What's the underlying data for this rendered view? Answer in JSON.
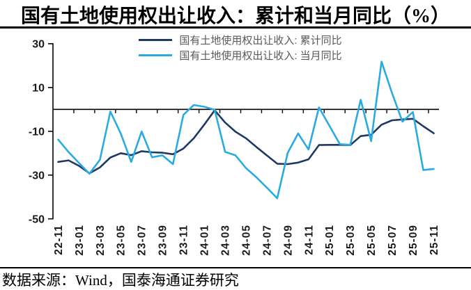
{
  "title": "国有土地使用权出让收入：累计和当月同比（%）",
  "source_note": "数据来源：Wind，国泰海通证券研究",
  "colors": {
    "cumulative_line": "#1f3864",
    "monthly_line": "#29abe2",
    "axis": "#000000",
    "tick_label": "#1a1a1a",
    "legend_text": "#595959"
  },
  "chart_data": {
    "type": "line",
    "title": "国有土地使用权出让收入：累计和当月同比（%）",
    "x": [
      "22-11",
      "22-12",
      "23-01",
      "23-02",
      "23-03",
      "23-04",
      "23-05",
      "23-06",
      "23-07",
      "23-08",
      "23-09",
      "23-10",
      "23-11",
      "23-12",
      "24-01",
      "24-02",
      "24-03",
      "24-04",
      "24-05",
      "24-06",
      "24-07",
      "24-08",
      "24-09",
      "24-10",
      "24-11",
      "24-12",
      "25-01",
      "25-02",
      "25-03",
      "25-04",
      "25-05",
      "25-06",
      "25-07",
      "25-08",
      "25-09",
      "25-10",
      "25-11"
    ],
    "x_label_every": 2,
    "series": [
      {
        "name": "国有土地使用权出让收入: 累计同比",
        "color": "#1f3864",
        "values": [
          -24.0,
          -23.3,
          -25.8,
          -29.2,
          -26.5,
          -22.0,
          -20.0,
          -20.9,
          -19.1,
          -19.6,
          -19.8,
          -20.5,
          -17.9,
          -13.2,
          -7.0,
          -0.4,
          -6.0,
          -10.2,
          -13.2,
          -17.2,
          -21.0,
          -24.8,
          -25.0,
          -24.3,
          -22.8,
          -16.3,
          -16.2,
          -16.2,
          -16.3,
          -12.2,
          -11.6,
          -7.0,
          -5.0,
          -4.6,
          -4.3,
          -7.7,
          -10.9
        ]
      },
      {
        "name": "国有土地使用权出让收入: 当月同比",
        "color": "#29abe2",
        "values": [
          -13.8,
          -19.5,
          -24.5,
          -29.4,
          -23.0,
          -1.0,
          -11.0,
          -24.0,
          -10.1,
          -21.9,
          -21.0,
          -25.0,
          -2.5,
          2.0,
          1.2,
          -0.2,
          -19.4,
          -21.0,
          -26.8,
          -31.0,
          -35.7,
          -40.6,
          -19.9,
          -11.0,
          -18.3,
          0.9,
          -7.5,
          -15.9,
          -16.2,
          4.4,
          -14.5,
          21.8,
          7.5,
          -5.6,
          -1.2,
          -27.7,
          -27.2
        ]
      }
    ],
    "ylim": [
      -50,
      30
    ],
    "yticks": [
      30,
      10,
      -10,
      -30,
      -50
    ],
    "xlabel": "",
    "ylabel": "",
    "grid": false,
    "legend_position": "top-center",
    "category_axis_at_zero": true
  }
}
